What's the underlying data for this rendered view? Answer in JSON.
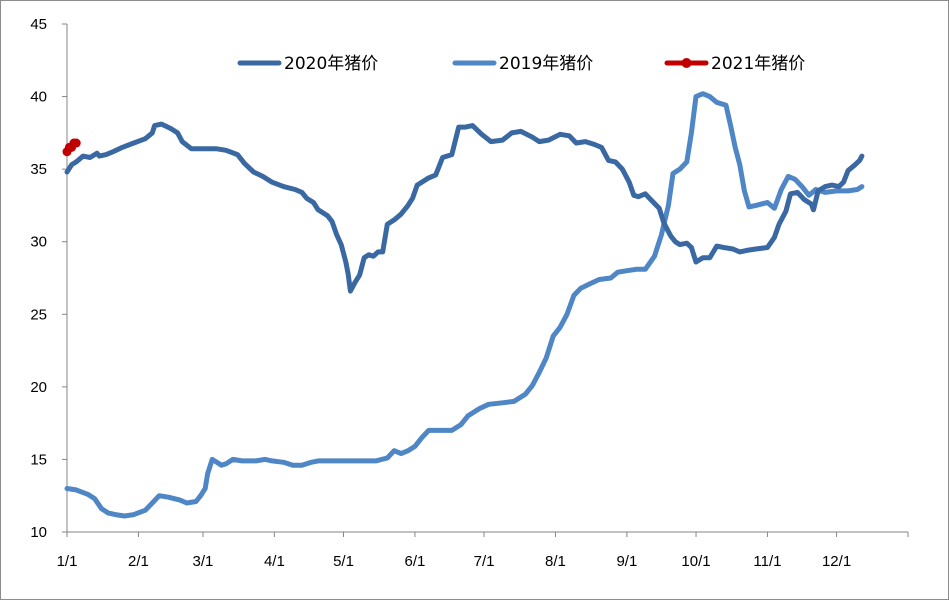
{
  "chart_data": {
    "type": "line",
    "title": "",
    "xlabel": "",
    "ylabel": "",
    "ylim": [
      10,
      45
    ],
    "yticks": [
      10,
      15,
      20,
      25,
      30,
      35,
      40,
      45
    ],
    "xticks": [
      "1/1",
      "2/1",
      "3/1",
      "4/1",
      "5/1",
      "6/1",
      "7/1",
      "8/1",
      "9/1",
      "10/1",
      "11/1",
      "12/1"
    ],
    "x_unit": "day of year",
    "legend_position": "top",
    "grid": false,
    "series": [
      {
        "name": "2020年猪价",
        "color": "#3a68a2",
        "points": [
          [
            1,
            34.8
          ],
          [
            3,
            35.3
          ],
          [
            5,
            35.5
          ],
          [
            8,
            35.9
          ],
          [
            11,
            35.8
          ],
          [
            14,
            36.1
          ],
          [
            15,
            35.9
          ],
          [
            18,
            36.0
          ],
          [
            21,
            36.2
          ],
          [
            25,
            36.5
          ],
          [
            30,
            36.8
          ],
          [
            35,
            37.1
          ],
          [
            38,
            37.5
          ],
          [
            39,
            38.0
          ],
          [
            42,
            38.1
          ],
          [
            46,
            37.8
          ],
          [
            49,
            37.5
          ],
          [
            51,
            36.9
          ],
          [
            55,
            36.4
          ],
          [
            60,
            36.4
          ],
          [
            66,
            36.4
          ],
          [
            70,
            36.3
          ],
          [
            75,
            36.0
          ],
          [
            78,
            35.4
          ],
          [
            82,
            34.8
          ],
          [
            86,
            34.5
          ],
          [
            90,
            34.1
          ],
          [
            95,
            33.8
          ],
          [
            100,
            33.6
          ],
          [
            103,
            33.4
          ],
          [
            105,
            33.0
          ],
          [
            108,
            32.7
          ],
          [
            110,
            32.2
          ],
          [
            114,
            31.8
          ],
          [
            116,
            31.4
          ],
          [
            118,
            30.5
          ],
          [
            120,
            29.8
          ],
          [
            122,
            28.6
          ],
          [
            123,
            27.8
          ],
          [
            124,
            26.6
          ],
          [
            126,
            27.2
          ],
          [
            128,
            27.7
          ],
          [
            130,
            28.9
          ],
          [
            132,
            29.1
          ],
          [
            134,
            29.0
          ],
          [
            136,
            29.3
          ],
          [
            138,
            29.3
          ],
          [
            140,
            31.2
          ],
          [
            143,
            31.5
          ],
          [
            146,
            31.9
          ],
          [
            149,
            32.5
          ],
          [
            151,
            33.0
          ],
          [
            153,
            33.9
          ],
          [
            156,
            34.2
          ],
          [
            158,
            34.4
          ],
          [
            161,
            34.6
          ],
          [
            164,
            35.8
          ],
          [
            168,
            36.0
          ],
          [
            171,
            37.9
          ],
          [
            174,
            37.9
          ],
          [
            177,
            38.0
          ],
          [
            181,
            37.4
          ],
          [
            185,
            36.9
          ],
          [
            190,
            37.0
          ],
          [
            194,
            37.5
          ],
          [
            198,
            37.6
          ],
          [
            203,
            37.2
          ],
          [
            206,
            36.9
          ],
          [
            210,
            37.0
          ],
          [
            215,
            37.4
          ],
          [
            219,
            37.3
          ],
          [
            222,
            36.8
          ],
          [
            226,
            36.9
          ],
          [
            230,
            36.7
          ],
          [
            233,
            36.5
          ],
          [
            236,
            35.6
          ],
          [
            239,
            35.5
          ],
          [
            242,
            35.0
          ],
          [
            245,
            34.1
          ],
          [
            247,
            33.2
          ],
          [
            249,
            33.1
          ],
          [
            252,
            33.3
          ],
          [
            255,
            32.8
          ],
          [
            258,
            32.3
          ],
          [
            260,
            31.3
          ],
          [
            263,
            30.4
          ],
          [
            265,
            30.0
          ],
          [
            267,
            29.8
          ],
          [
            270,
            29.9
          ],
          [
            272,
            29.6
          ],
          [
            274,
            28.6
          ],
          [
            277,
            28.9
          ],
          [
            280,
            28.9
          ],
          [
            283,
            29.7
          ],
          [
            286,
            29.6
          ],
          [
            290,
            29.5
          ],
          [
            293,
            29.3
          ],
          [
            296,
            29.4
          ],
          [
            300,
            29.5
          ],
          [
            305,
            29.6
          ],
          [
            308,
            30.3
          ],
          [
            310,
            31.2
          ],
          [
            313,
            32.1
          ],
          [
            315,
            33.3
          ],
          [
            318,
            33.4
          ],
          [
            321,
            32.9
          ],
          [
            324,
            32.6
          ],
          [
            325,
            32.2
          ],
          [
            327,
            33.5
          ],
          [
            330,
            33.8
          ],
          [
            333,
            33.9
          ],
          [
            336,
            33.8
          ],
          [
            338,
            34.1
          ],
          [
            340,
            34.9
          ],
          [
            343,
            35.3
          ],
          [
            345,
            35.6
          ],
          [
            346,
            35.9
          ]
        ]
      },
      {
        "name": "2019年猪价",
        "color": "#4e86c6",
        "points": [
          [
            1,
            13.0
          ],
          [
            5,
            12.9
          ],
          [
            10,
            12.6
          ],
          [
            13,
            12.3
          ],
          [
            16,
            11.6
          ],
          [
            19,
            11.3
          ],
          [
            22,
            11.2
          ],
          [
            26,
            11.1
          ],
          [
            30,
            11.2
          ],
          [
            35,
            11.5
          ],
          [
            38,
            12.0
          ],
          [
            41,
            12.5
          ],
          [
            45,
            12.4
          ],
          [
            50,
            12.2
          ],
          [
            53,
            12.0
          ],
          [
            57,
            12.1
          ],
          [
            59,
            12.5
          ],
          [
            61,
            13.0
          ],
          [
            62,
            14.0
          ],
          [
            64,
            15.0
          ],
          [
            66,
            14.8
          ],
          [
            68,
            14.6
          ],
          [
            70,
            14.7
          ],
          [
            73,
            15.0
          ],
          [
            77,
            14.9
          ],
          [
            83,
            14.9
          ],
          [
            87,
            15.0
          ],
          [
            90,
            14.9
          ],
          [
            95,
            14.8
          ],
          [
            99,
            14.6
          ],
          [
            103,
            14.6
          ],
          [
            107,
            14.8
          ],
          [
            110,
            14.9
          ],
          [
            120,
            14.9
          ],
          [
            135,
            14.9
          ],
          [
            140,
            15.1
          ],
          [
            143,
            15.6
          ],
          [
            146,
            15.4
          ],
          [
            149,
            15.6
          ],
          [
            152,
            15.9
          ],
          [
            155,
            16.5
          ],
          [
            158,
            17.0
          ],
          [
            162,
            17.0
          ],
          [
            168,
            17.0
          ],
          [
            172,
            17.4
          ],
          [
            175,
            18.0
          ],
          [
            180,
            18.5
          ],
          [
            184,
            18.8
          ],
          [
            190,
            18.9
          ],
          [
            195,
            19.0
          ],
          [
            200,
            19.5
          ],
          [
            203,
            20.1
          ],
          [
            206,
            21.0
          ],
          [
            209,
            22.0
          ],
          [
            212,
            23.5
          ],
          [
            215,
            24.1
          ],
          [
            218,
            25.0
          ],
          [
            221,
            26.3
          ],
          [
            224,
            26.8
          ],
          [
            228,
            27.1
          ],
          [
            232,
            27.4
          ],
          [
            237,
            27.5
          ],
          [
            240,
            27.9
          ],
          [
            244,
            28.0
          ],
          [
            248,
            28.1
          ],
          [
            252,
            28.1
          ],
          [
            256,
            29.0
          ],
          [
            259,
            30.5
          ],
          [
            262,
            32.5
          ],
          [
            264,
            34.7
          ],
          [
            267,
            35.0
          ],
          [
            270,
            35.5
          ],
          [
            272,
            37.5
          ],
          [
            274,
            40.0
          ],
          [
            277,
            40.2
          ],
          [
            280,
            40.0
          ],
          [
            283,
            39.6
          ],
          [
            287,
            39.4
          ],
          [
            289,
            38.0
          ],
          [
            291,
            36.5
          ],
          [
            293,
            35.3
          ],
          [
            295,
            33.5
          ],
          [
            297,
            32.4
          ],
          [
            300,
            32.5
          ],
          [
            305,
            32.7
          ],
          [
            308,
            32.3
          ],
          [
            311,
            33.6
          ],
          [
            314,
            34.5
          ],
          [
            317,
            34.3
          ],
          [
            320,
            33.8
          ],
          [
            323,
            33.2
          ],
          [
            326,
            33.6
          ],
          [
            330,
            33.4
          ],
          [
            335,
            33.5
          ],
          [
            340,
            33.5
          ],
          [
            344,
            33.6
          ],
          [
            346,
            33.8
          ]
        ]
      },
      {
        "name": "2021年猪价",
        "color": "#c00000",
        "points": [
          [
            1,
            36.2
          ],
          [
            2,
            36.5
          ],
          [
            3,
            36.5
          ],
          [
            4,
            36.8
          ],
          [
            5,
            36.8
          ]
        ]
      }
    ]
  }
}
